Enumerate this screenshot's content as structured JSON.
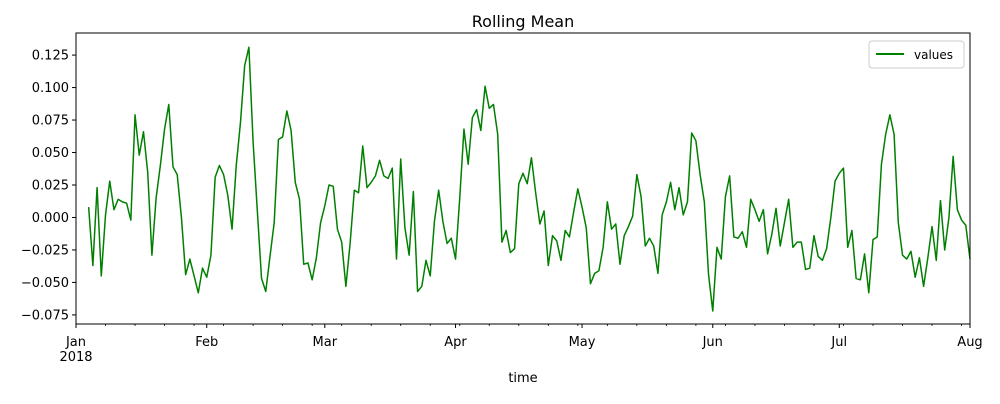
{
  "chart_data": {
    "type": "line",
    "title": "Rolling Mean",
    "xlabel": "time",
    "ylabel": "",
    "xlim": [
      "2018-01-01",
      "2018-08-01"
    ],
    "ylim": [
      -0.082,
      0.142
    ],
    "x_ticks": [
      {
        "date": "2018-01-01",
        "label": "Jan",
        "sublabel": "2018"
      },
      {
        "date": "2018-02-01",
        "label": "Feb"
      },
      {
        "date": "2018-03-01",
        "label": "Mar"
      },
      {
        "date": "2018-04-01",
        "label": "Apr"
      },
      {
        "date": "2018-05-01",
        "label": "May"
      },
      {
        "date": "2018-06-01",
        "label": "Jun"
      },
      {
        "date": "2018-07-01",
        "label": "Jul"
      },
      {
        "date": "2018-08-01",
        "label": "Aug"
      }
    ],
    "y_ticks": [
      -0.075,
      -0.05,
      -0.025,
      0.0,
      0.025,
      0.05,
      0.075,
      0.1,
      0.125
    ],
    "y_tick_labels": [
      "−0.075",
      "−0.050",
      "−0.025",
      "0.000",
      "0.025",
      "0.050",
      "0.075",
      "0.100",
      "0.125"
    ],
    "grid": false,
    "legend": {
      "placement": "top-right",
      "entries": [
        "values"
      ]
    },
    "series": [
      {
        "name": "values",
        "color": "#008000",
        "start_date": "2018-01-04",
        "step_days": 1,
        "values": [
          0.008,
          -0.037,
          0.023,
          -0.045,
          0.002,
          0.028,
          0.006,
          0.014,
          0.012,
          0.011,
          -0.002,
          0.079,
          0.048,
          0.066,
          0.035,
          -0.029,
          0.015,
          0.04,
          0.068,
          0.087,
          0.039,
          0.033,
          0.0,
          -0.044,
          -0.032,
          -0.045,
          -0.058,
          -0.039,
          -0.046,
          -0.029,
          0.031,
          0.04,
          0.033,
          0.017,
          -0.009,
          0.04,
          0.073,
          0.117,
          0.131,
          0.058,
          0.005,
          -0.047,
          -0.057,
          -0.03,
          -0.004,
          0.06,
          0.062,
          0.082,
          0.067,
          0.027,
          0.014,
          -0.036,
          -0.035,
          -0.048,
          -0.031,
          -0.004,
          0.009,
          0.025,
          0.024,
          -0.009,
          -0.019,
          -0.053,
          -0.02,
          0.021,
          0.019,
          0.055,
          0.023,
          0.027,
          0.032,
          0.044,
          0.032,
          0.03,
          0.038,
          -0.032,
          0.045,
          -0.008,
          -0.029,
          0.02,
          -0.057,
          -0.053,
          -0.033,
          -0.045,
          -0.003,
          0.021,
          -0.003,
          -0.02,
          -0.016,
          -0.032,
          0.015,
          0.068,
          0.041,
          0.077,
          0.083,
          0.067,
          0.101,
          0.084,
          0.087,
          0.064,
          -0.019,
          -0.01,
          -0.027,
          -0.024,
          0.026,
          0.034,
          0.026,
          0.046,
          0.019,
          -0.005,
          0.005,
          -0.037,
          -0.014,
          -0.018,
          -0.033,
          -0.01,
          -0.015,
          0.004,
          0.022,
          0.008,
          -0.008,
          -0.051,
          -0.043,
          -0.041,
          -0.023,
          0.012,
          -0.009,
          -0.005,
          -0.036,
          -0.014,
          -0.007,
          0.001,
          0.033,
          0.016,
          -0.022,
          -0.016,
          -0.022,
          -0.043,
          0.002,
          0.012,
          0.027,
          0.006,
          0.023,
          0.002,
          0.012,
          0.065,
          0.059,
          0.033,
          0.012,
          -0.044,
          -0.072,
          -0.023,
          -0.032,
          0.016,
          0.032,
          -0.015,
          -0.016,
          -0.011,
          -0.023,
          0.014,
          0.006,
          -0.003,
          0.006,
          -0.028,
          -0.013,
          0.007,
          -0.022,
          -0.004,
          0.014,
          -0.023,
          -0.019,
          -0.019,
          -0.04,
          -0.039,
          -0.014,
          -0.03,
          -0.033,
          -0.024,
          0.0,
          0.028,
          0.034,
          0.038,
          -0.023,
          -0.01,
          -0.047,
          -0.048,
          -0.028,
          -0.058,
          -0.017,
          -0.015,
          0.041,
          0.064,
          0.079,
          0.064,
          -0.004,
          -0.029,
          -0.032,
          -0.026,
          -0.046,
          -0.031,
          -0.053,
          -0.031,
          -0.007,
          -0.033,
          0.013,
          -0.025,
          0.0,
          0.047,
          0.006,
          -0.002,
          -0.006,
          -0.032
        ]
      }
    ]
  }
}
